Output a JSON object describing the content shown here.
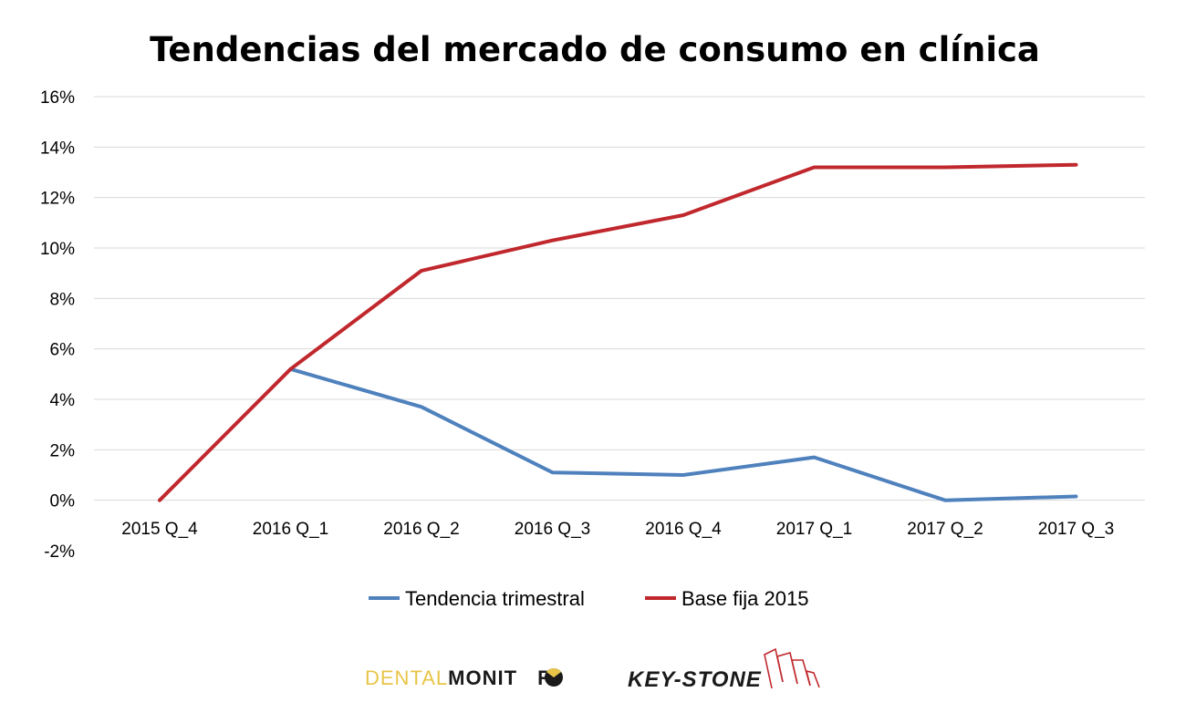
{
  "chart_data": {
    "type": "line",
    "title": "Tendencias del mercado de consumo en clínica",
    "xlabel": "",
    "ylabel": "",
    "categories": [
      "2015 Q_4",
      "2016 Q_1",
      "2016 Q_2",
      "2016 Q_3",
      "2016 Q_4",
      "2017 Q_1",
      "2017 Q_2",
      "2017 Q_3"
    ],
    "ylim": [
      -2,
      16
    ],
    "yticks": [
      "16%",
      "14%",
      "12%",
      "10%",
      "8%",
      "6%",
      "4%",
      "2%",
      "0%",
      "-2%"
    ],
    "ytick_values": [
      16,
      14,
      12,
      10,
      8,
      6,
      4,
      2,
      0,
      -2
    ],
    "grid": true,
    "legend_position": "bottom",
    "series": [
      {
        "name": "Tendencia trimestral",
        "color": "#4f81bd",
        "values": [
          null,
          5.2,
          3.7,
          1.1,
          1.0,
          1.7,
          0.0,
          0.15
        ]
      },
      {
        "name": "Base fija 2015",
        "color": "#c0282d",
        "values": [
          0.0,
          5.2,
          9.1,
          10.3,
          11.3,
          13.2,
          13.2,
          13.3
        ]
      }
    ]
  },
  "logos": {
    "dental_monitor": {
      "part1": "DENTAL",
      "part2": "MONIT",
      "part3": "R",
      "color1": "#e8c547",
      "color2": "#1a1a1a"
    },
    "keystone": {
      "text": "KEY-STONE",
      "color": "#1a1a1a",
      "accent": "#c0282d"
    }
  }
}
